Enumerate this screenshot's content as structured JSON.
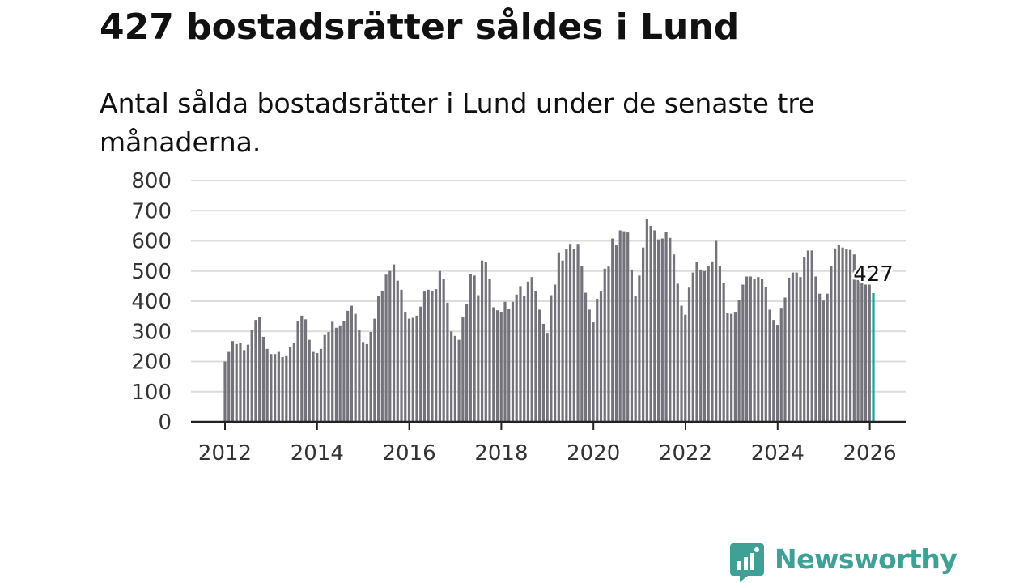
{
  "title": "427 bostadsrätter såldes i Lund",
  "subtitle": "Antal sålda bostadsrätter i Lund under de senaste tre månaderna.",
  "brand": {
    "name": "Newsworthy",
    "icon": "newsworthy-logo-icon",
    "color": "#3fa196"
  },
  "chart_data": {
    "type": "bar",
    "title": "427 bostadsrätter såldes i Lund",
    "subtitle": "Antal sålda bostadsrätter i Lund under de senaste tre månaderna.",
    "xlabel": "",
    "ylabel": "",
    "ylim": [
      0,
      800
    ],
    "yticks": [
      "0",
      "100",
      "200",
      "300",
      "400",
      "500",
      "600",
      "700",
      "800"
    ],
    "xticks": [
      "2012",
      "2014",
      "2016",
      "2018",
      "2020",
      "2022",
      "2024",
      "2026"
    ],
    "x_start": 2012.0,
    "x_step": 0.0833,
    "grid": true,
    "bar_color": "#74737c",
    "highlight_color": "#1aa39b",
    "highlight_label": "427",
    "values": [
      200,
      232,
      268,
      258,
      262,
      238,
      256,
      306,
      338,
      348,
      282,
      242,
      225,
      225,
      232,
      215,
      218,
      248,
      262,
      335,
      352,
      340,
      272,
      232,
      228,
      242,
      288,
      298,
      332,
      312,
      320,
      335,
      368,
      385,
      358,
      305,
      265,
      258,
      298,
      342,
      418,
      435,
      488,
      500,
      522,
      468,
      438,
      365,
      342,
      345,
      352,
      382,
      432,
      438,
      435,
      440,
      500,
      475,
      395,
      300,
      285,
      272,
      348,
      392,
      490,
      485,
      420,
      535,
      530,
      475,
      380,
      370,
      365,
      398,
      375,
      398,
      422,
      450,
      418,
      465,
      480,
      435,
      372,
      325,
      295,
      420,
      455,
      562,
      535,
      572,
      590,
      572,
      590,
      518,
      428,
      372,
      330,
      408,
      432,
      508,
      515,
      608,
      585,
      635,
      632,
      628,
      505,
      418,
      485,
      578,
      672,
      650,
      635,
      605,
      608,
      630,
      610,
      555,
      458,
      385,
      355,
      445,
      495,
      530,
      505,
      500,
      518,
      532,
      600,
      518,
      460,
      362,
      358,
      365,
      405,
      455,
      482,
      482,
      475,
      480,
      475,
      448,
      372,
      338,
      322,
      378,
      412,
      478,
      495,
      495,
      480,
      545,
      568,
      568,
      482,
      425,
      402,
      425,
      518,
      575,
      588,
      578,
      572,
      570,
      555,
      470,
      462,
      455,
      455,
      427
    ]
  }
}
